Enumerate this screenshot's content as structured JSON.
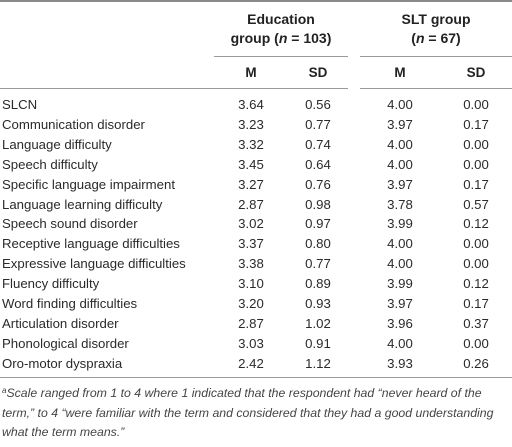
{
  "table": {
    "group_education": {
      "label_line1": "Education",
      "label_prefix": "group (",
      "n_symbol": "n",
      "label_suffix": " = 103)"
    },
    "group_slt": {
      "label_line1": "SLT group",
      "label_prefix": "(",
      "n_symbol": "n",
      "label_suffix": " = 67)"
    },
    "col_m": "M",
    "col_sd": "SD",
    "rows": [
      {
        "term": "SLCN",
        "edu_m": "3.64",
        "edu_sd": "0.56",
        "slt_m": "4.00",
        "slt_sd": "0.00"
      },
      {
        "term": "Communication disorder",
        "edu_m": "3.23",
        "edu_sd": "0.77",
        "slt_m": "3.97",
        "slt_sd": "0.17"
      },
      {
        "term": "Language difficulty",
        "edu_m": "3.32",
        "edu_sd": "0.74",
        "slt_m": "4.00",
        "slt_sd": "0.00"
      },
      {
        "term": "Speech difficulty",
        "edu_m": "3.45",
        "edu_sd": "0.64",
        "slt_m": "4.00",
        "slt_sd": "0.00"
      },
      {
        "term": "Specific language impairment",
        "edu_m": "3.27",
        "edu_sd": "0.76",
        "slt_m": "3.97",
        "slt_sd": "0.17"
      },
      {
        "term": "Language learning difficulty",
        "edu_m": "2.87",
        "edu_sd": "0.98",
        "slt_m": "3.78",
        "slt_sd": "0.57"
      },
      {
        "term": "Speech sound disorder",
        "edu_m": "3.02",
        "edu_sd": "0.97",
        "slt_m": "3.99",
        "slt_sd": "0.12"
      },
      {
        "term": "Receptive language difficulties",
        "edu_m": "3.37",
        "edu_sd": "0.80",
        "slt_m": "4.00",
        "slt_sd": "0.00"
      },
      {
        "term": "Expressive language difficulties",
        "edu_m": "3.38",
        "edu_sd": "0.77",
        "slt_m": "4.00",
        "slt_sd": "0.00"
      },
      {
        "term": "Fluency difficulty",
        "edu_m": "3.10",
        "edu_sd": "0.89",
        "slt_m": "3.99",
        "slt_sd": "0.12"
      },
      {
        "term": "Word finding difficulties",
        "edu_m": "3.20",
        "edu_sd": "0.93",
        "slt_m": "3.97",
        "slt_sd": "0.17"
      },
      {
        "term": "Articulation disorder",
        "edu_m": "2.87",
        "edu_sd": "1.02",
        "slt_m": "3.96",
        "slt_sd": "0.37"
      },
      {
        "term": "Phonological disorder",
        "edu_m": "3.03",
        "edu_sd": "0.91",
        "slt_m": "4.00",
        "slt_sd": "0.00"
      },
      {
        "term": "Oro-motor dyspraxia",
        "edu_m": "2.42",
        "edu_sd": "1.12",
        "slt_m": "3.93",
        "slt_sd": "0.26"
      }
    ]
  },
  "footnote": {
    "marker": "a",
    "text": "Scale ranged from 1 to 4 where 1 indicated that the respondent had “never heard of the term,” to 4 “were familiar with the term and considered that they had a good understanding what the term means.”"
  }
}
